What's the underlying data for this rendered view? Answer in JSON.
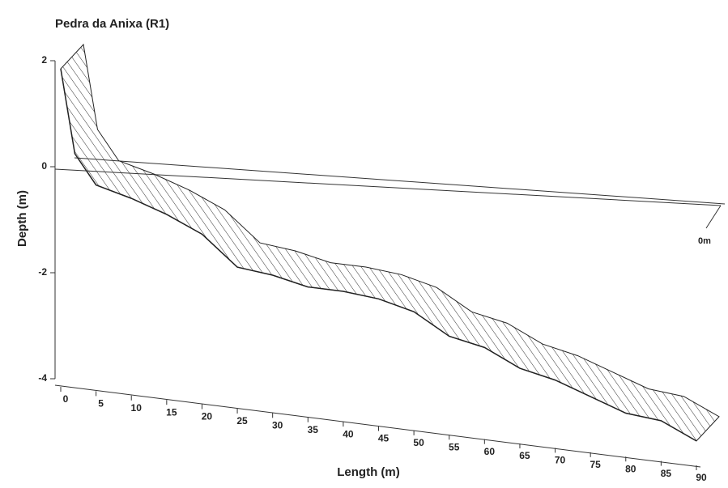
{
  "chart_data": {
    "type": "profile",
    "title": "Pedra da Anixa (R1)",
    "xlabel": "Length (m)",
    "ylabel": "Depth (m)",
    "plane_label": "0m",
    "x": [
      0,
      2,
      5,
      10,
      15,
      20,
      25,
      30,
      35,
      40,
      45,
      50,
      55,
      60,
      65,
      70,
      75,
      80,
      85,
      90
    ],
    "values": [
      2.0,
      0.43,
      -0.11,
      -0.28,
      -0.5,
      -0.79,
      -1.33,
      -1.4,
      -1.54,
      -1.54,
      -1.6,
      -1.76,
      -2.14,
      -2.27,
      -2.58,
      -2.72,
      -2.95,
      -3.18,
      -3.24,
      -3.54
    ],
    "color": "#222222",
    "xlim": [
      0,
      90
    ],
    "xticks": [
      0,
      5,
      10,
      15,
      20,
      25,
      30,
      35,
      40,
      45,
      50,
      55,
      60,
      65,
      70,
      75,
      80,
      85,
      90
    ],
    "ylim": [
      -4,
      2
    ],
    "yticks": [
      2,
      0,
      -2,
      -4
    ]
  }
}
